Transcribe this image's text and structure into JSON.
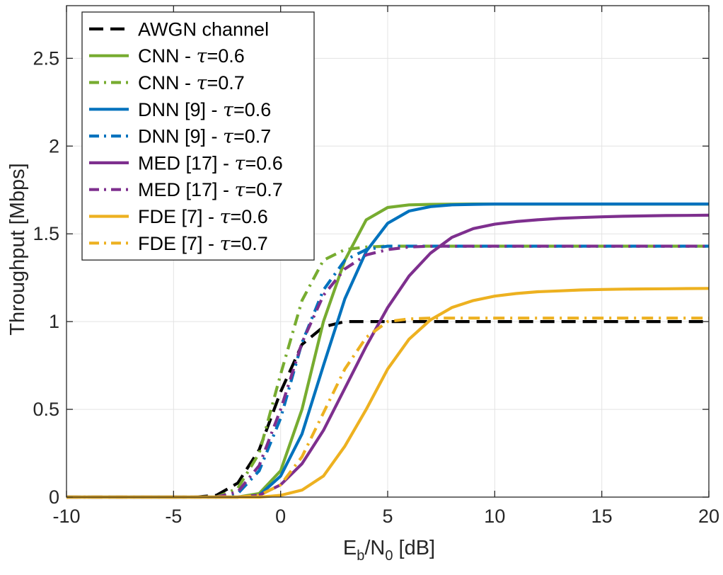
{
  "chart_data": {
    "type": "line",
    "title": "",
    "xlabel": {
      "base": "E",
      "sub1": "b",
      "mid": "/N",
      "sub2": "0",
      "rest": " [dB]"
    },
    "ylabel": "Throughput [Mbps]",
    "xlim": [
      -10,
      20
    ],
    "ylim": [
      0,
      2.8
    ],
    "grid": true,
    "legend_position": "top-left",
    "xticks": [
      -10,
      -5,
      0,
      5,
      10,
      15,
      20
    ],
    "xtick_labels": [
      "-10",
      "-5",
      "0",
      "5",
      "10",
      "15",
      "20"
    ],
    "yticks": [
      0,
      0.5,
      1,
      1.5,
      2,
      2.5
    ],
    "ytick_labels": [
      "0",
      "0.5",
      "1",
      "1.5",
      "2",
      "2.5"
    ],
    "x": [
      -10,
      -9,
      -8,
      -7,
      -6,
      -5,
      -4,
      -3,
      -2,
      -1,
      0,
      1,
      2,
      3,
      4,
      5,
      6,
      7,
      8,
      9,
      10,
      11,
      12,
      13,
      14,
      15,
      16,
      17,
      18,
      19,
      20
    ],
    "series": [
      {
        "name": "AWGN channel",
        "prefix": "AWGN channel",
        "tau": "",
        "suffix": "",
        "color": "#000000",
        "style": "dashed",
        "values": [
          0,
          0,
          0,
          0,
          0,
          0,
          0,
          0.01,
          0.08,
          0.27,
          0.6,
          0.87,
          0.97,
          1.0,
          1.0,
          1.0,
          1.0,
          1.0,
          1.0,
          1.0,
          1.0,
          1.0,
          1.0,
          1.0,
          1.0,
          1.0,
          1.0,
          1.0,
          1.0,
          1.0,
          1.0
        ]
      },
      {
        "name": "CNN - τ=0.6",
        "prefix": "CNN - ",
        "tau": "τ",
        "suffix": "=0.6",
        "color": "#77ac30",
        "style": "solid",
        "values": [
          0,
          0,
          0,
          0,
          0,
          0,
          0,
          0,
          0,
          0.02,
          0.15,
          0.5,
          1.0,
          1.35,
          1.58,
          1.65,
          1.665,
          1.668,
          1.669,
          1.67,
          1.67,
          1.67,
          1.67,
          1.67,
          1.67,
          1.67,
          1.67,
          1.67,
          1.67,
          1.67,
          1.67
        ]
      },
      {
        "name": "CNN - τ=0.7",
        "prefix": "CNN - ",
        "tau": "τ",
        "suffix": "=0.7",
        "color": "#77ac30",
        "style": "dashdot",
        "values": [
          0,
          0,
          0,
          0,
          0,
          0,
          0,
          0,
          0.05,
          0.25,
          0.7,
          1.12,
          1.35,
          1.41,
          1.425,
          1.43,
          1.43,
          1.43,
          1.43,
          1.43,
          1.43,
          1.43,
          1.43,
          1.43,
          1.43,
          1.43,
          1.43,
          1.43,
          1.43,
          1.43,
          1.43
        ]
      },
      {
        "name": "DNN [9] - τ=0.6",
        "prefix": "DNN [9] - ",
        "tau": "τ",
        "suffix": "=0.6",
        "color": "#0072bd",
        "style": "solid",
        "values": [
          0,
          0,
          0,
          0,
          0,
          0,
          0,
          0,
          0,
          0.01,
          0.12,
          0.36,
          0.75,
          1.13,
          1.4,
          1.56,
          1.63,
          1.655,
          1.665,
          1.668,
          1.67,
          1.67,
          1.67,
          1.67,
          1.67,
          1.67,
          1.67,
          1.67,
          1.67,
          1.67,
          1.67
        ]
      },
      {
        "name": "DNN [9] - τ=0.7",
        "prefix": "DNN [9] - ",
        "tau": "τ",
        "suffix": "=0.7",
        "color": "#0072bd",
        "style": "dashdot",
        "values": [
          0,
          0,
          0,
          0,
          0,
          0,
          0,
          0,
          0.02,
          0.15,
          0.45,
          0.88,
          1.18,
          1.35,
          1.41,
          1.43,
          1.43,
          1.43,
          1.43,
          1.43,
          1.43,
          1.43,
          1.43,
          1.43,
          1.43,
          1.43,
          1.43,
          1.43,
          1.43,
          1.43,
          1.43
        ]
      },
      {
        "name": "MED [17] - τ=0.6",
        "prefix": "MED [17] - ",
        "tau": "τ",
        "suffix": "=0.6",
        "color": "#7e2f8e",
        "style": "solid",
        "values": [
          0,
          0,
          0,
          0,
          0,
          0,
          0,
          0,
          0,
          0.01,
          0.07,
          0.19,
          0.38,
          0.62,
          0.86,
          1.08,
          1.26,
          1.39,
          1.48,
          1.53,
          1.555,
          1.57,
          1.58,
          1.588,
          1.593,
          1.597,
          1.6,
          1.602,
          1.604,
          1.605,
          1.606
        ]
      },
      {
        "name": "MED [17] - τ=0.7",
        "prefix": "MED [17] - ",
        "tau": "τ",
        "suffix": "=0.7",
        "color": "#7e2f8e",
        "style": "dashdot",
        "values": [
          0,
          0,
          0,
          0,
          0,
          0,
          0,
          0,
          0.03,
          0.18,
          0.5,
          0.88,
          1.15,
          1.3,
          1.38,
          1.41,
          1.425,
          1.43,
          1.43,
          1.43,
          1.43,
          1.43,
          1.43,
          1.43,
          1.43,
          1.43,
          1.43,
          1.43,
          1.43,
          1.43,
          1.43
        ]
      },
      {
        "name": "FDE [7] - τ=0.6",
        "prefix": "FDE [7] - ",
        "tau": "τ",
        "suffix": "=0.6",
        "color": "#edb120",
        "style": "solid",
        "values": [
          0,
          0,
          0,
          0,
          0,
          0,
          0,
          0,
          0,
          0,
          0.01,
          0.04,
          0.12,
          0.29,
          0.5,
          0.73,
          0.9,
          1.01,
          1.08,
          1.12,
          1.145,
          1.16,
          1.17,
          1.175,
          1.18,
          1.183,
          1.185,
          1.186,
          1.187,
          1.188,
          1.189
        ]
      },
      {
        "name": "FDE [7] - τ=0.7",
        "prefix": "FDE [7] - ",
        "tau": "τ",
        "suffix": "=0.7",
        "color": "#edb120",
        "style": "dashdot",
        "values": [
          0,
          0,
          0,
          0,
          0,
          0,
          0,
          0,
          0,
          0.01,
          0.07,
          0.23,
          0.48,
          0.73,
          0.91,
          1.0,
          1.015,
          1.02,
          1.02,
          1.02,
          1.02,
          1.02,
          1.02,
          1.02,
          1.02,
          1.02,
          1.02,
          1.02,
          1.02,
          1.02,
          1.02
        ]
      }
    ]
  }
}
